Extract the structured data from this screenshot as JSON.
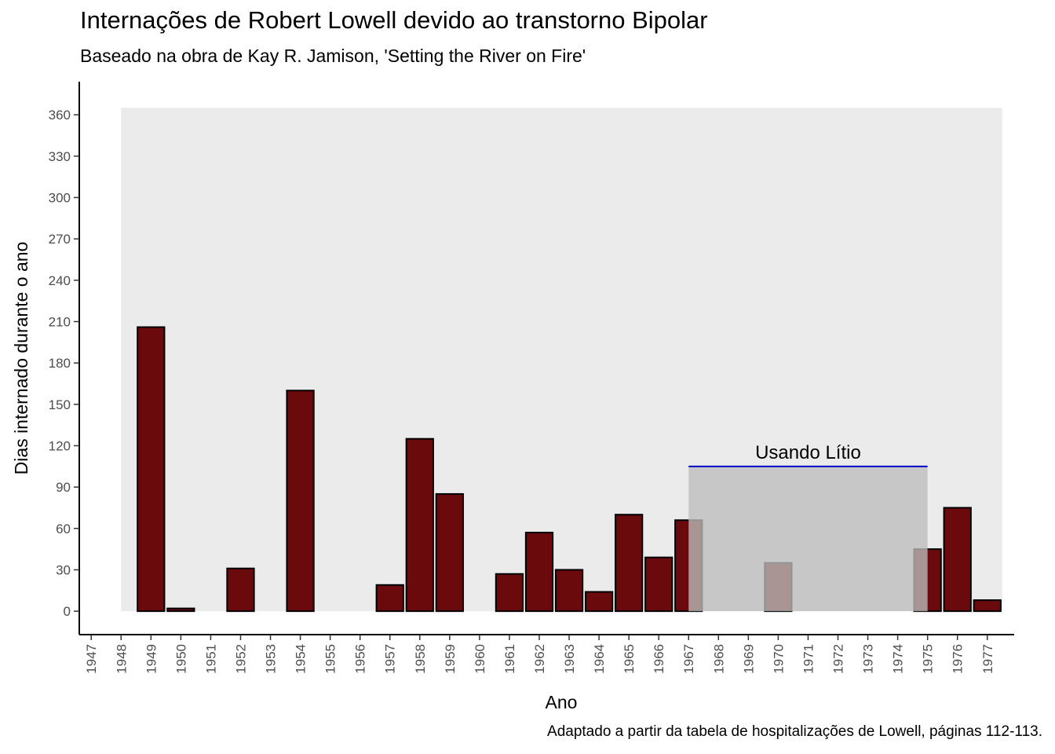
{
  "chart_data": {
    "type": "bar",
    "title": "Internações de Robert Lowell devido ao transtorno Bipolar",
    "subtitle": "Baseado na obra de Kay R. Jamison, 'Setting the River on Fire'",
    "caption": "Adaptado a partir da tabela de hospitalizações de Lowell, páginas 112-113.",
    "xlabel": "Ano",
    "ylabel": "Dias internado durante o ano",
    "x_ticks": [
      "1947",
      "1948",
      "1949",
      "1950",
      "1951",
      "1952",
      "1953",
      "1954",
      "1955",
      "1956",
      "1957",
      "1958",
      "1959",
      "1960",
      "1961",
      "1962",
      "1963",
      "1964",
      "1965",
      "1966",
      "1967",
      "1968",
      "1969",
      "1970",
      "1971",
      "1972",
      "1973",
      "1974",
      "1975",
      "1976",
      "1977"
    ],
    "y_ticks": [
      0,
      30,
      60,
      90,
      120,
      150,
      180,
      210,
      240,
      270,
      300,
      330,
      360
    ],
    "ylim": [
      -17,
      384
    ],
    "xlim": [
      1946.6,
      1977.9
    ],
    "series": [
      {
        "x": [
          1949,
          1950,
          1952,
          1954,
          1957,
          1958,
          1959,
          1961,
          1962,
          1963,
          1964,
          1965,
          1966,
          1967,
          1970,
          1975,
          1976,
          1977
        ],
        "values": [
          206,
          2,
          31,
          160,
          19,
          125,
          85,
          27,
          57,
          30,
          14,
          70,
          39,
          66,
          35,
          45,
          75,
          8
        ]
      }
    ],
    "background_band": {
      "x_start": 1948,
      "x_end": 1977.5,
      "y_start": 0,
      "y_end": 365
    },
    "annotation": {
      "label": "Usando Lítio",
      "x_start": 1967,
      "x_end": 1975,
      "y_start": 0,
      "y_end": 105
    },
    "colors": {
      "bar_fill": "#6b0a0c",
      "bar_edge": "#000000",
      "band_fill": "#ebebeb",
      "annotation_fill": "#bdbdbd",
      "annotation_line": "#0000cc"
    },
    "grid": false,
    "legend": "none"
  }
}
